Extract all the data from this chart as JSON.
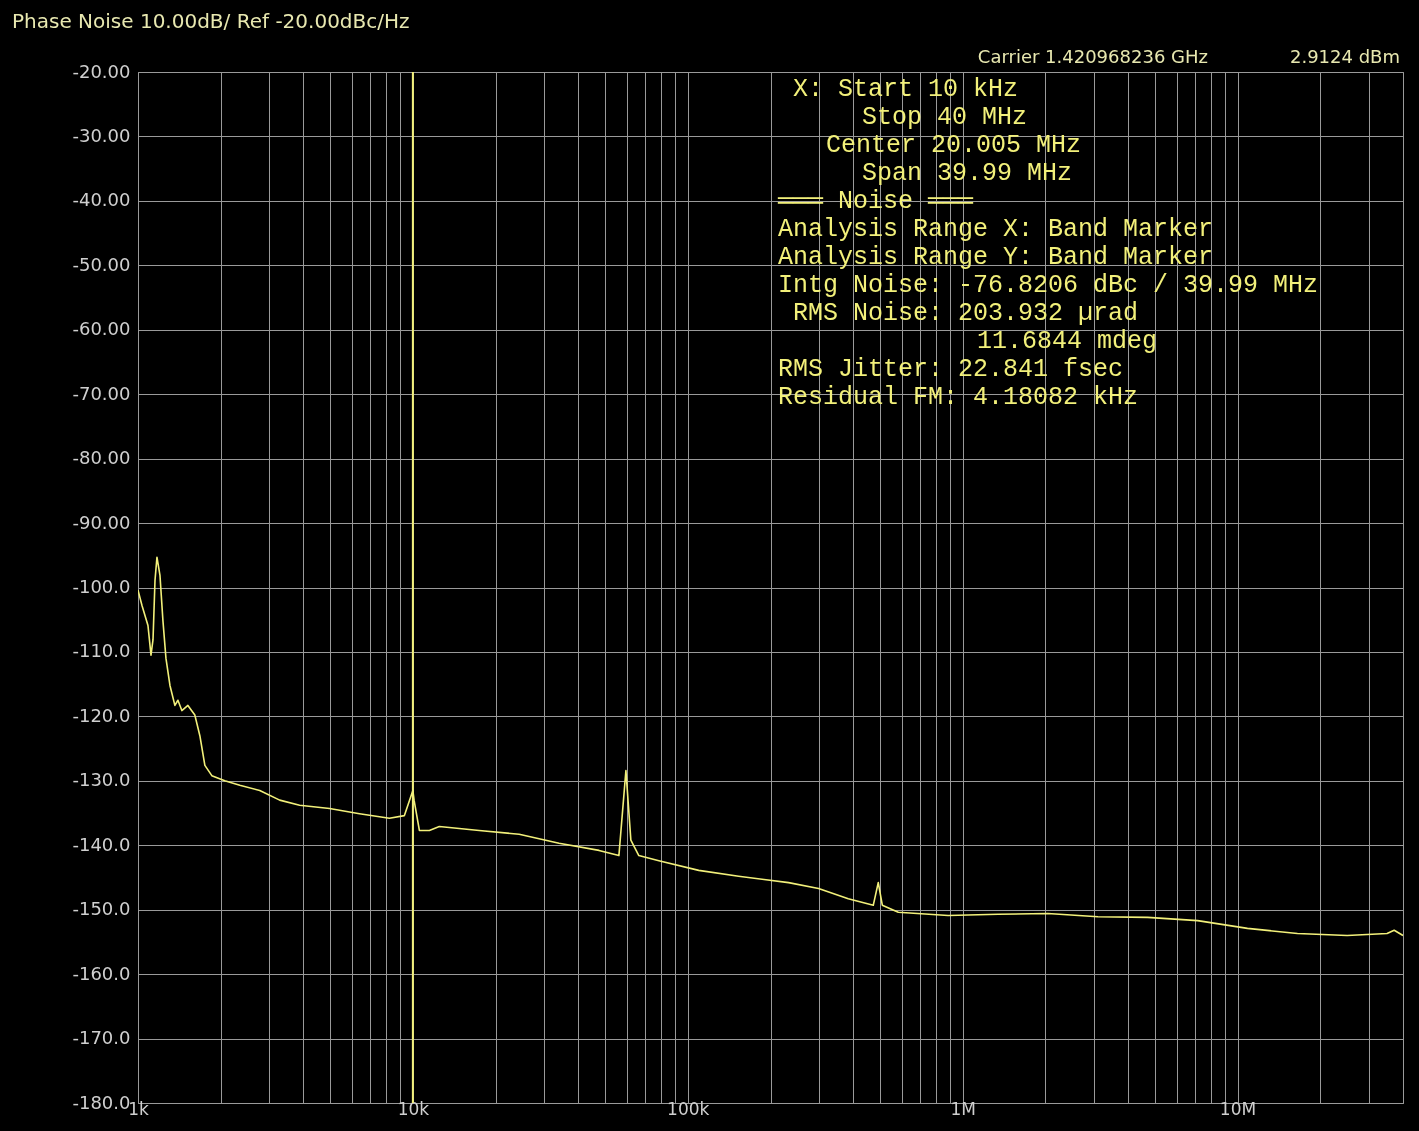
{
  "chart_data": {
    "type": "line",
    "title": "Phase Noise 10.00dB/ Ref -20.00dBc/Hz",
    "x": [
      1000,
      1034,
      1087,
      1115,
      1134,
      1153,
      1172,
      1202,
      1232,
      1264,
      1307,
      1362,
      1397,
      1444,
      1519,
      1610,
      1679,
      1751,
      1856,
      2069,
      2346,
      2773,
      3277,
      3873,
      4977,
      6395,
      8216,
      9314,
      10000,
      10100,
      10560,
      11480,
      12480,
      17430,
      24360,
      34020,
      47530,
      56170,
      59570,
      62090,
      66370,
      78520,
      109650,
      153100,
      232700,
      299200,
      383700,
      473200,
      493200,
      510200,
      583300,
      885100,
      1346000,
      2042000,
      3105000,
      4710000,
      7161000,
      10870000,
      16520000,
      25060000,
      35000000,
      37150000,
      40000000
    ],
    "series": [
      {
        "color": "#f2f07a",
        "values": [
          -100.4,
          -102.8,
          -105.9,
          -110.5,
          -108.1,
          -98.9,
          -95.3,
          -98.1,
          -105.1,
          -111.0,
          -115.2,
          -118.3,
          -117.5,
          -119.1,
          -118.3,
          -119.8,
          -123.0,
          -127.6,
          -129.2,
          -130.0,
          -130.7,
          -131.5,
          -133.0,
          -133.8,
          -134.3,
          -135.1,
          -135.8,
          -135.4,
          -131.5,
          -133.0,
          -137.7,
          -137.7,
          -137.1,
          -137.7,
          -138.3,
          -139.7,
          -140.8,
          -141.6,
          -128.4,
          -139.2,
          -141.6,
          -142.4,
          -143.9,
          -144.8,
          -145.8,
          -146.7,
          -148.3,
          -149.3,
          -145.8,
          -149.3,
          -150.4,
          -150.9,
          -150.7,
          -150.6,
          -151.1,
          -151.2,
          -151.7,
          -152.9,
          -153.7,
          -154.0,
          -153.7,
          -153.2,
          -154.0
        ]
      }
    ],
    "xlim": [
      1000,
      40000000
    ],
    "ylim": [
      -180,
      -20
    ],
    "log": "x",
    "xticks": [
      {
        "value": 1000,
        "label": "1k"
      },
      {
        "value": 2000,
        "label": null
      },
      {
        "value": 3000,
        "label": null
      },
      {
        "value": 4000,
        "label": null
      },
      {
        "value": 5000,
        "label": null
      },
      {
        "value": 6000,
        "label": null
      },
      {
        "value": 7000,
        "label": null
      },
      {
        "value": 8000,
        "label": null
      },
      {
        "value": 9000,
        "label": null
      },
      {
        "value": 10000,
        "label": "10k"
      },
      {
        "value": 20000,
        "label": null
      },
      {
        "value": 30000,
        "label": null
      },
      {
        "value": 40000,
        "label": null
      },
      {
        "value": 50000,
        "label": null
      },
      {
        "value": 60000,
        "label": null
      },
      {
        "value": 70000,
        "label": null
      },
      {
        "value": 80000,
        "label": null
      },
      {
        "value": 90000,
        "label": null
      },
      {
        "value": 100000,
        "label": "100k"
      },
      {
        "value": 200000,
        "label": null
      },
      {
        "value": 300000,
        "label": null
      },
      {
        "value": 400000,
        "label": null
      },
      {
        "value": 500000,
        "label": null
      },
      {
        "value": 600000,
        "label": null
      },
      {
        "value": 700000,
        "label": null
      },
      {
        "value": 800000,
        "label": null
      },
      {
        "value": 900000,
        "label": null
      },
      {
        "value": 1000000,
        "label": "1M"
      },
      {
        "value": 2000000,
        "label": null
      },
      {
        "value": 3000000,
        "label": null
      },
      {
        "value": 4000000,
        "label": null
      },
      {
        "value": 5000000,
        "label": null
      },
      {
        "value": 6000000,
        "label": null
      },
      {
        "value": 7000000,
        "label": null
      },
      {
        "value": 8000000,
        "label": null
      },
      {
        "value": 9000000,
        "label": null
      },
      {
        "value": 10000000,
        "label": "10M"
      },
      {
        "value": 20000000,
        "label": null
      },
      {
        "value": 30000000,
        "label": null
      },
      {
        "value": 40000000,
        "label": null
      }
    ],
    "yticks": [
      {
        "value": -20,
        "label": "-20.00"
      },
      {
        "value": -30,
        "label": "-30.00"
      },
      {
        "value": -40,
        "label": "-40.00"
      },
      {
        "value": -50,
        "label": "-50.00"
      },
      {
        "value": -60,
        "label": "-60.00"
      },
      {
        "value": -70,
        "label": "-70.00"
      },
      {
        "value": -80,
        "label": "-80.00"
      },
      {
        "value": -90,
        "label": "-90.00"
      },
      {
        "value": -100,
        "label": "-100.0"
      },
      {
        "value": -110,
        "label": "-110.0"
      },
      {
        "value": -120,
        "label": "-120.0"
      },
      {
        "value": -130,
        "label": "-130.0"
      },
      {
        "value": -140,
        "label": "-140.0"
      },
      {
        "value": -150,
        "label": "-150.0"
      },
      {
        "value": -160,
        "label": "-160.0"
      },
      {
        "value": -170,
        "label": "-170.0"
      },
      {
        "value": -180,
        "label": "-180.0"
      }
    ],
    "grid": true,
    "ref_lines": [
      {
        "axis": "x",
        "value": 10000,
        "color": "#f2f07a"
      }
    ],
    "annotations": [
      "Carrier 1.420968236 GHz",
      "2.9124 dBm",
      "X: Start 10 kHz",
      "Stop 40 MHz",
      "Center 20.005 MHz",
      "Span 39.99 MHz",
      "═══ Noise ═══",
      "Analysis Range X: Band Marker",
      "Analysis Range Y: Band Marker",
      "Intg Noise: -76.8206 dBc / 39.99 MHz",
      "RMS Noise: 203.932 µrad",
      "11.6844 mdeg",
      "RMS Jitter: 22.841 fsec",
      "Residual FM: 4.18082 kHz"
    ]
  }
}
